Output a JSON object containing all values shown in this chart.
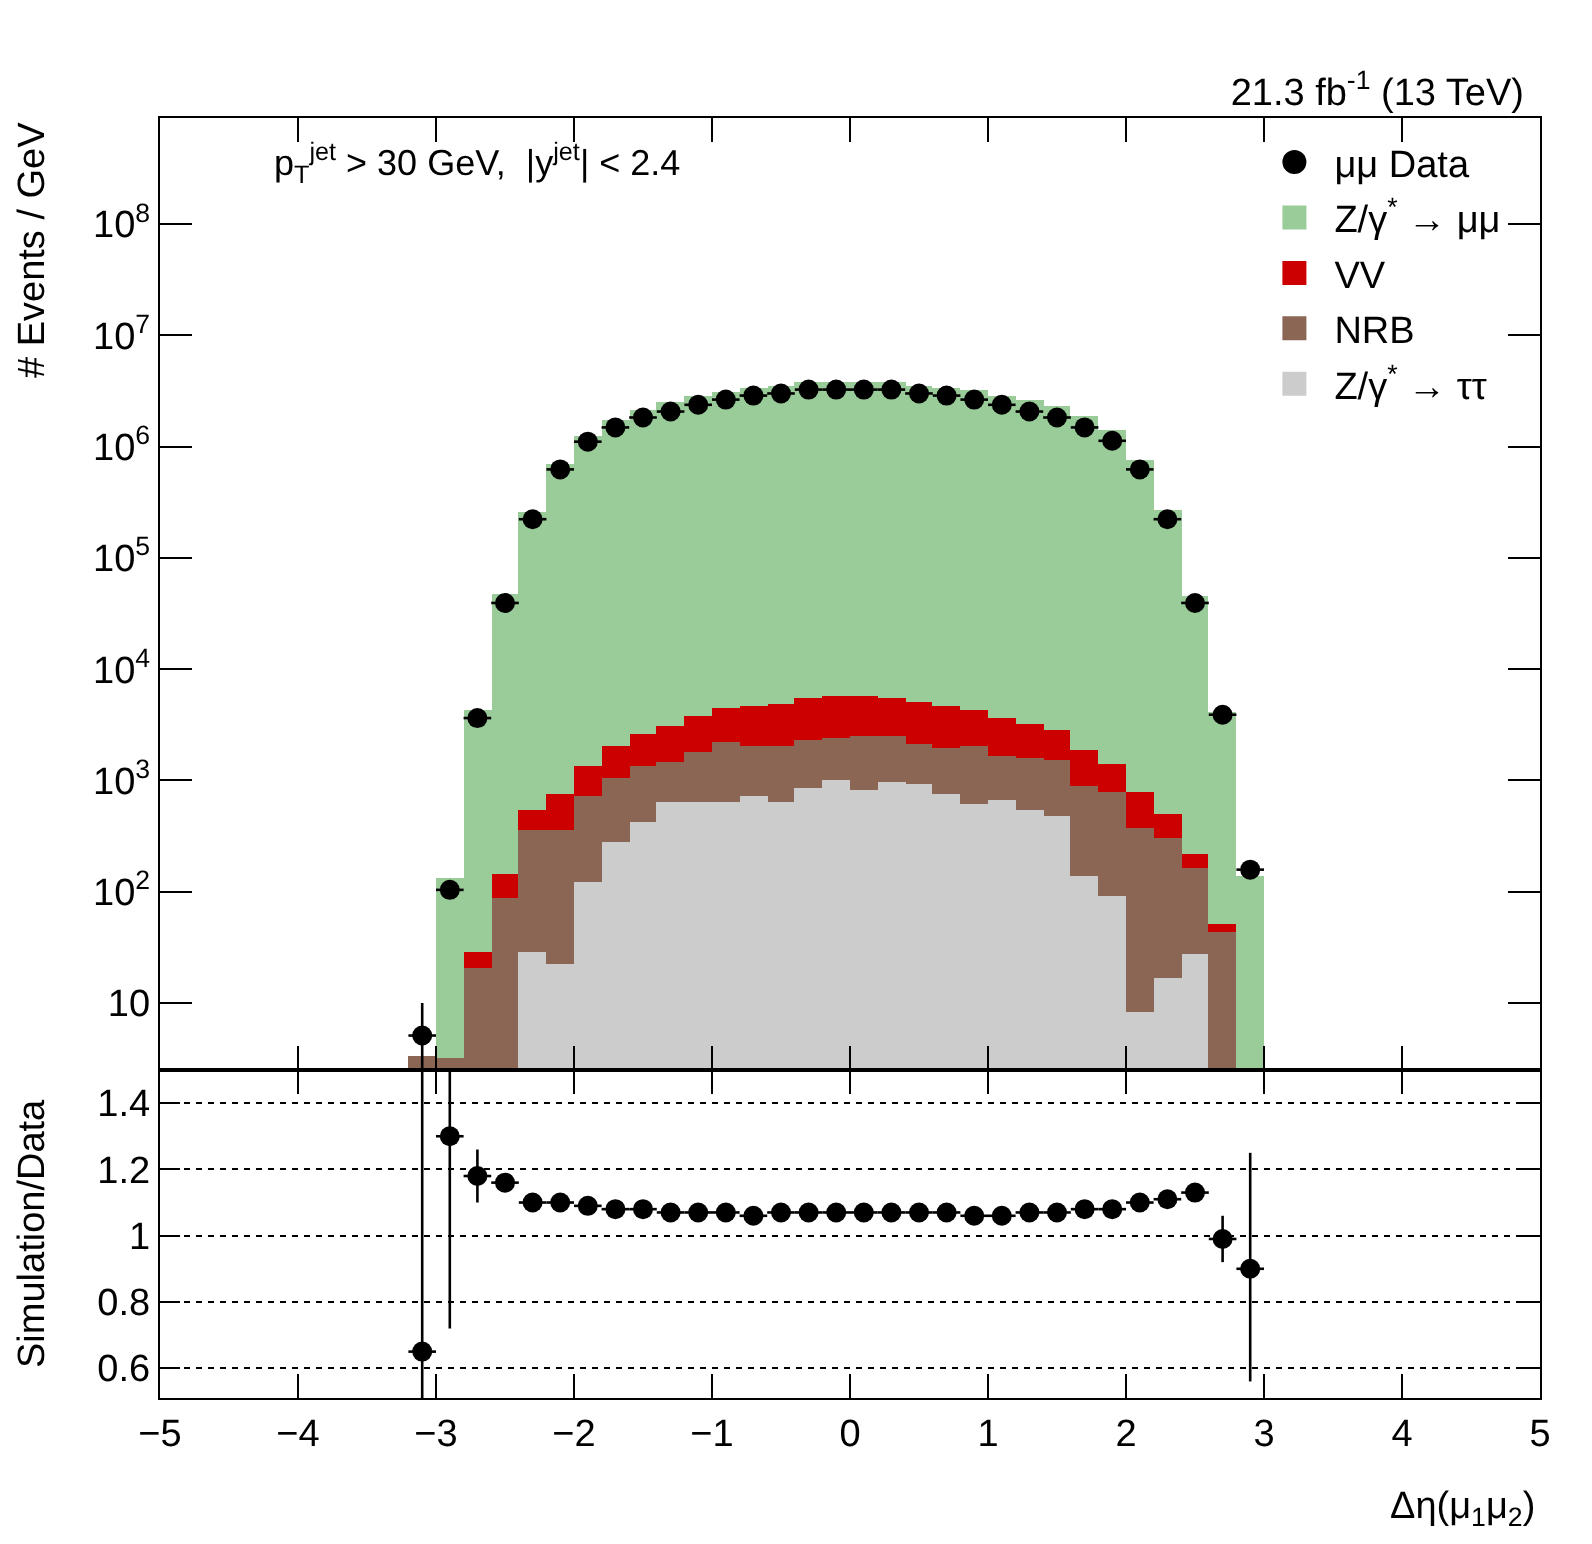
{
  "chart_data": [
    {
      "type": "bar",
      "stacked": true,
      "title": "21.3 fb$^{-1}$ (13 TeV)",
      "ylabel": "# Events / GeV",
      "annotations": [
        "p$_{T}$$^{jet}$ > 30 GeV,  |y$^{jet}$| < 2.4"
      ],
      "x": [
        -3.1,
        -2.9,
        -2.7,
        -2.5,
        -2.3,
        -2.1,
        -1.9,
        -1.7,
        -1.5,
        -1.3,
        -1.1,
        -0.9,
        -0.7,
        -0.5,
        -0.3,
        -0.1,
        0.1,
        0.3,
        0.5,
        0.7,
        0.9,
        1.1,
        1.3,
        1.5,
        1.7,
        1.9,
        2.1,
        2.3,
        2.5,
        2.7,
        2.9
      ],
      "series": [
        {
          "name": "Z/γ$^{*}$ → ττ",
          "color": "#cccccc",
          "values": [
            null,
            null,
            null,
            null,
            29,
            22.6,
            123,
            281,
            425,
            643,
            643,
            643,
            727,
            643,
            857,
            1010,
            822,
            971,
            931,
            757,
            617,
            670,
            545,
            481,
            139,
            92,
            8.4,
            17,
            28,
            null,
            null
          ]
        },
        {
          "name": "NRB",
          "color": "#8b6655",
          "values": [
            3.4,
            3.2,
            20.9,
            88.5,
            332,
            338,
            604,
            769,
            925,
            827,
            1157,
            1577,
            1313,
            1397,
            1453,
            1400,
            1688,
            1539,
            1199,
            1203,
            1423,
            990,
            1045,
            1049,
            755,
            697,
            368,
            289,
            136,
            43.9,
            null
          ]
        },
        {
          "name": "VV",
          "color": "#cc0000",
          "values": [
            null,
            null,
            8.1,
            56.5,
            184,
            397,
            623,
            990,
            1260,
            1610,
            1990,
            2260,
            2690,
            2880,
            3190,
            3320,
            3220,
            2990,
            2930,
            2700,
            2260,
            1980,
            1620,
            1310,
            986,
            621,
            413,
            195,
            56,
            7.9,
            null
          ]
        },
        {
          "name": "Z/γ$^{*}$ → μμ",
          "color": "#99cc99",
          "values": [
            null,
            130,
            4270,
            47000,
            255000,
            697000,
            1260000,
            1710000,
            2100000,
            2480000,
            2810000,
            3130000,
            3400000,
            3540000,
            3740000,
            3740000,
            3740000,
            3740000,
            3540000,
            3400000,
            3180000,
            2810000,
            2580000,
            2280000,
            1880000,
            1390000,
            759000,
            267000,
            45800,
            4130,
            141
          ]
        },
        {
          "name": "μμ Data",
          "type": "scatter",
          "color": "#000000",
          "values": [
            5.1,
            104,
            3640,
            39400,
            223000,
            625000,
            1110000,
            1490000,
            1830000,
            2070000,
            2380000,
            2650000,
            2880000,
            3010000,
            3260000,
            3260000,
            3260000,
            3260000,
            3010000,
            2880000,
            2650000,
            2380000,
            2070000,
            1830000,
            1490000,
            1130000,
            625000,
            223000,
            39400,
            3900,
            158
          ],
          "errors": [
            [
              2.5,
              10
            ],
            10,
            null,
            null,
            null,
            null,
            null,
            null,
            null,
            null,
            null,
            null,
            null,
            null,
            null,
            null,
            null,
            null,
            null,
            null,
            null,
            null,
            null,
            null,
            null,
            null,
            null,
            null,
            null,
            null,
            null
          ],
          "xerrors": [
            0.1,
            0.1,
            0.1,
            0.1,
            0.1,
            0.1,
            0.1,
            0.1,
            0.1,
            0.1,
            0.1,
            0.1,
            0.1,
            0.1,
            0.1,
            0.1,
            0.1,
            0.1,
            0.1,
            0.1,
            0.1,
            0.1,
            0.1,
            0.1,
            0.1,
            0.1,
            0.1,
            0.1,
            0.1,
            0.1,
            0.1
          ]
        }
      ],
      "marker": "circle",
      "log": true,
      "legend": "top right",
      "tick_labels": "y",
      "xlim": [
        -5,
        5
      ],
      "xticks": [
        -5,
        -4,
        -3,
        -2,
        -1,
        0,
        1,
        2,
        3,
        4,
        5
      ],
      "ylim": [
        2.5,
        900000000
      ],
      "yticks": [
        {
          "value": 10,
          "label": "10"
        },
        {
          "value": 100,
          "label": "10$^{2}$"
        },
        {
          "value": 1000,
          "label": "10$^{3}$"
        },
        {
          "value": 10000,
          "label": "10$^{4}$"
        },
        {
          "value": 100000,
          "label": "10$^{5}$"
        },
        {
          "value": 1000000,
          "label": "10$^{6}$"
        },
        {
          "value": 10000000,
          "label": "10$^{7}$"
        },
        {
          "value": 100000000,
          "label": "10$^{8}$"
        }
      ]
    },
    {
      "type": "scatter",
      "xlabel": "Δη(μ$_{1}$μ$_{2}$)",
      "ylabel": "Simulation/Data",
      "marker": "circle",
      "grid": "y",
      "x": [
        -3.1,
        -2.9,
        -2.7,
        -2.5,
        -2.3,
        -2.1,
        -1.9,
        -1.7,
        -1.5,
        -1.3,
        -1.1,
        -0.9,
        -0.7,
        -0.5,
        -0.3,
        -0.1,
        0.1,
        0.3,
        0.5,
        0.7,
        0.9,
        1.1,
        1.3,
        1.5,
        1.7,
        1.9,
        2.1,
        2.3,
        2.5,
        2.7,
        2.9
      ],
      "series": [
        {
          "color": "#000000",
          "values": [
            0.65,
            1.3,
            1.18,
            1.16,
            1.1,
            1.1,
            1.09,
            1.08,
            1.08,
            1.07,
            1.07,
            1.07,
            1.06,
            1.07,
            1.07,
            1.07,
            1.07,
            1.07,
            1.07,
            1.07,
            1.06,
            1.06,
            1.07,
            1.07,
            1.08,
            1.08,
            1.1,
            1.11,
            1.13,
            0.99,
            0.9
          ],
          "errors": [
            [
              0.51,
              1.5
            ],
            [
              0.72,
              1.5
            ],
            0.08,
            null,
            null,
            null,
            null,
            null,
            null,
            null,
            null,
            null,
            null,
            null,
            null,
            null,
            null,
            null,
            null,
            null,
            null,
            null,
            null,
            null,
            null,
            null,
            null,
            null,
            null,
            0.07,
            [
              0.56,
              1.25
            ]
          ],
          "xerrors": [
            0.1,
            0.1,
            0.1,
            0.1,
            0.1,
            0.1,
            0.1,
            0.1,
            0.1,
            0.1,
            0.1,
            0.1,
            0.1,
            0.1,
            0.1,
            0.1,
            0.1,
            0.1,
            0.1,
            0.1,
            0.1,
            0.1,
            0.1,
            0.1,
            0.1,
            0.1,
            0.1,
            0.1,
            0.1,
            0.1,
            0.1
          ]
        }
      ],
      "xlim": [
        -5,
        5
      ],
      "xticks": [
        -5,
        -4,
        -3,
        -2,
        -1,
        0,
        1,
        2,
        3,
        4,
        5
      ],
      "ylim": [
        0.51,
        1.5
      ],
      "yticks": [
        {
          "value": 0.6,
          "label": "0.6"
        },
        {
          "value": 0.8,
          "label": "0.8"
        },
        {
          "value": 1,
          "label": "1"
        },
        {
          "value": 1.2,
          "label": "1.2"
        },
        {
          "value": 1.4,
          "label": "1.4"
        }
      ]
    }
  ]
}
